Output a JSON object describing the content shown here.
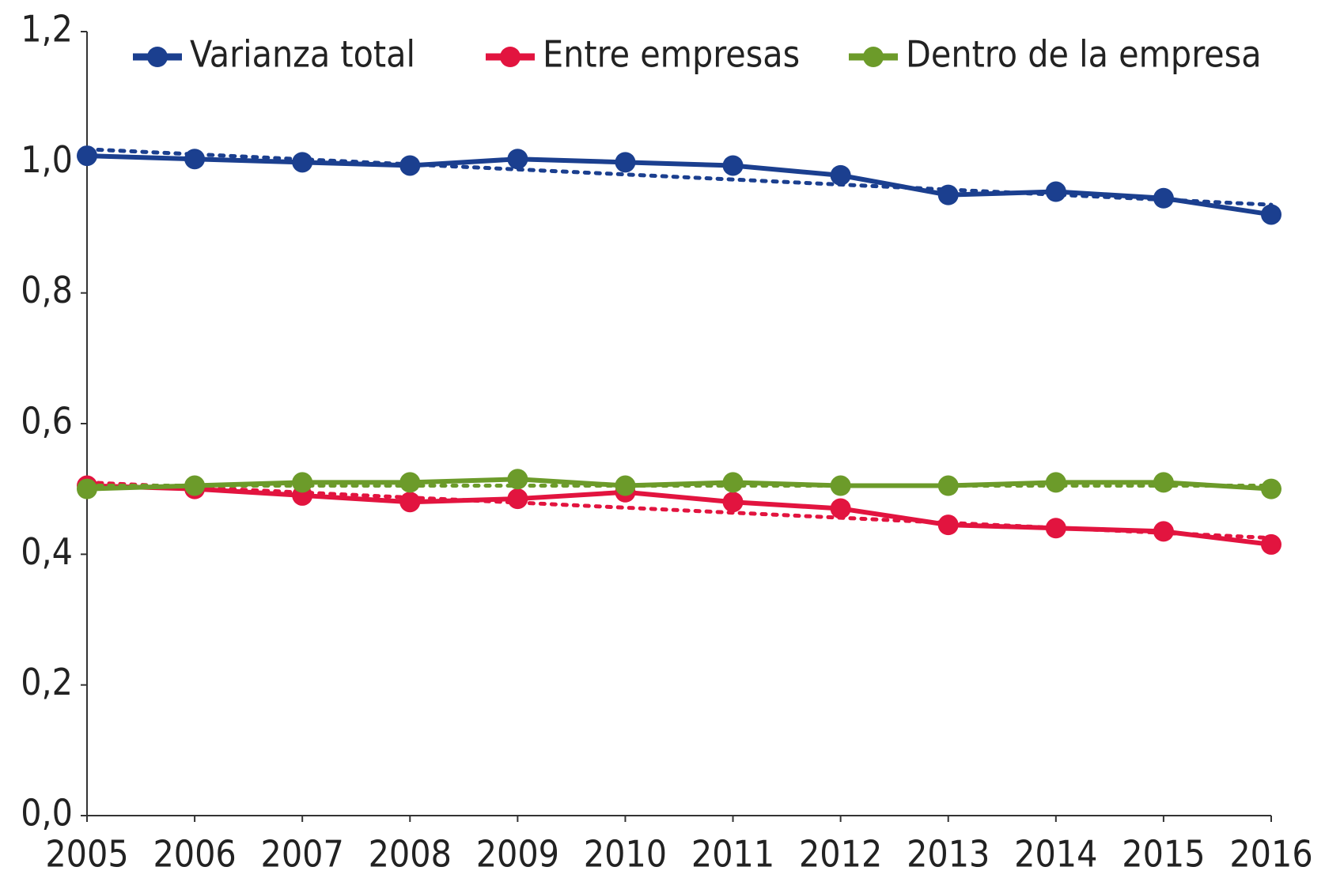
{
  "chart_data": {
    "type": "line",
    "categories": [
      "2005",
      "2006",
      "2007",
      "2008",
      "2009",
      "2010",
      "2011",
      "2012",
      "2013",
      "2014",
      "2015",
      "2016"
    ],
    "series": [
      {
        "name": "Varianza total",
        "color": "#1b3f8f",
        "values": [
          1.01,
          1.005,
          1.0,
          0.995,
          1.005,
          1.0,
          0.995,
          0.98,
          0.95,
          0.955,
          0.945,
          0.92
        ],
        "trend": [
          1.02,
          0.935
        ]
      },
      {
        "name": "Entre empresas",
        "color": "#e2143f",
        "values": [
          0.505,
          0.5,
          0.49,
          0.48,
          0.485,
          0.495,
          0.48,
          0.47,
          0.445,
          0.44,
          0.435,
          0.415
        ],
        "trend": [
          0.51,
          0.425
        ]
      },
      {
        "name": "Dentro de la empresa",
        "color": "#6c9b2a",
        "values": [
          0.5,
          0.505,
          0.51,
          0.51,
          0.515,
          0.505,
          0.51,
          0.505,
          0.505,
          0.51,
          0.51,
          0.5
        ],
        "trend": [
          0.505,
          0.505
        ]
      }
    ],
    "ylim": [
      0,
      1.2
    ],
    "yticks": [
      {
        "value": 0,
        "label": "0,0"
      },
      {
        "value": 0.2,
        "label": "0,2"
      },
      {
        "value": 0.4,
        "label": "0,4"
      },
      {
        "value": 0.6,
        "label": "0,6"
      },
      {
        "value": 0.8,
        "label": "0,8"
      },
      {
        "value": 1.0,
        "label": "1,0"
      },
      {
        "value": 1.2,
        "label": "1,2"
      }
    ],
    "grid": false
  }
}
